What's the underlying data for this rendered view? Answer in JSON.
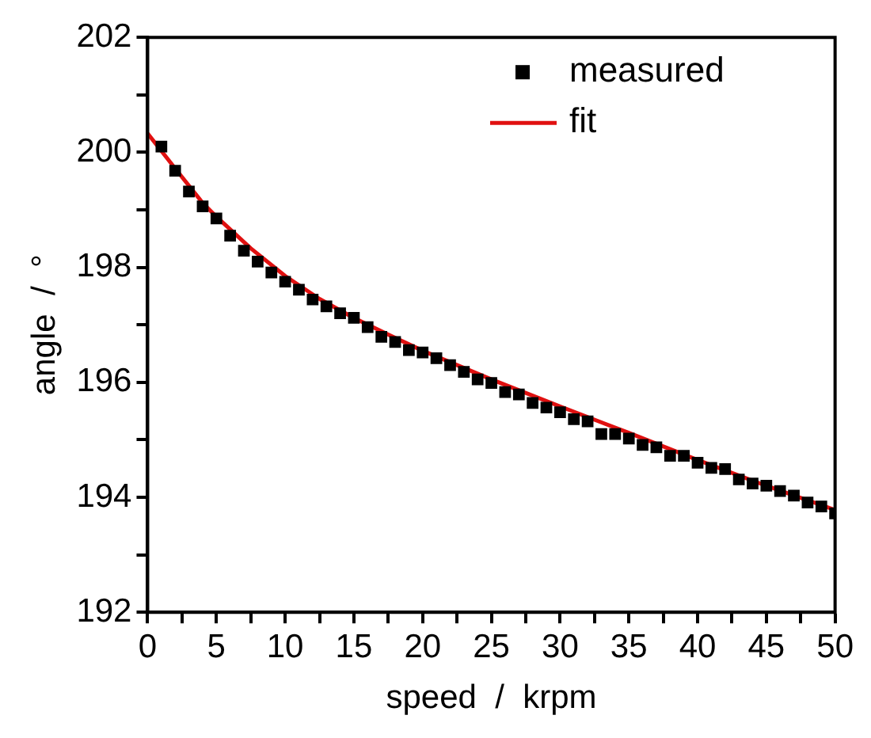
{
  "chart_data": {
    "type": "scatter",
    "xlabel": "speed  /  krpm",
    "ylabel": "angle  /  °",
    "xlim": [
      0,
      50
    ],
    "ylim": [
      192,
      202
    ],
    "xticks": [
      0,
      {
        "value": 2.5,
        "label": null
      },
      5,
      {
        "value": 7.5,
        "label": null
      },
      10,
      {
        "value": 12.5,
        "label": null
      },
      15,
      {
        "value": 17.5,
        "label": null
      },
      20,
      {
        "value": 22.5,
        "label": null
      },
      25,
      {
        "value": 27.5,
        "label": null
      },
      30,
      {
        "value": 32.5,
        "label": null
      },
      35,
      {
        "value": 37.5,
        "label": null
      },
      40,
      {
        "value": 42.5,
        "label": null
      },
      45,
      {
        "value": 47.5,
        "label": null
      },
      50
    ],
    "yticks": [
      192,
      {
        "value": 193,
        "label": null
      },
      194,
      {
        "value": 195,
        "label": null
      },
      196,
      {
        "value": 197,
        "label": null
      },
      198,
      {
        "value": 199,
        "label": null
      },
      200,
      {
        "value": 201,
        "label": null
      },
      202
    ],
    "legend": "top right",
    "series": [
      {
        "name": "measured",
        "type": "scatter",
        "marker": "square",
        "color": "#000000",
        "x": [
          1,
          2,
          3,
          4,
          5,
          6,
          7,
          8,
          9,
          10,
          11,
          12,
          13,
          14,
          15,
          16,
          17,
          18,
          19,
          20,
          21,
          22,
          23,
          24,
          25,
          26,
          27,
          28,
          29,
          30,
          31,
          32,
          33,
          34,
          35,
          36,
          37,
          38,
          39,
          40,
          41,
          42,
          43,
          44,
          45,
          46,
          47,
          48,
          49,
          50
        ],
        "values": [
          200.1,
          199.68,
          199.32,
          199.06,
          198.85,
          198.55,
          198.29,
          198.1,
          197.91,
          197.75,
          197.61,
          197.44,
          197.32,
          197.2,
          197.12,
          196.96,
          196.79,
          196.7,
          196.56,
          196.52,
          196.42,
          196.3,
          196.18,
          196.05,
          195.99,
          195.83,
          195.79,
          195.64,
          195.56,
          195.48,
          195.36,
          195.32,
          195.1,
          195.1,
          195.02,
          194.91,
          194.87,
          194.72,
          194.72,
          194.6,
          194.51,
          194.49,
          194.31,
          194.24,
          194.2,
          194.11,
          194.03,
          193.91,
          193.84,
          193.72
        ]
      },
      {
        "name": "fit",
        "type": "line",
        "marker": "none",
        "line_style": "solid",
        "color": "#e01010",
        "x": [
          0,
          2,
          4,
          5,
          7.5,
          10,
          12.5,
          15,
          17.5,
          20,
          25,
          30,
          35,
          40,
          45,
          50
        ],
        "values": [
          200.33,
          199.72,
          199.12,
          198.88,
          198.33,
          197.85,
          197.45,
          197.12,
          196.83,
          196.55,
          196.05,
          195.58,
          195.12,
          194.65,
          194.2,
          193.78
        ]
      }
    ]
  }
}
